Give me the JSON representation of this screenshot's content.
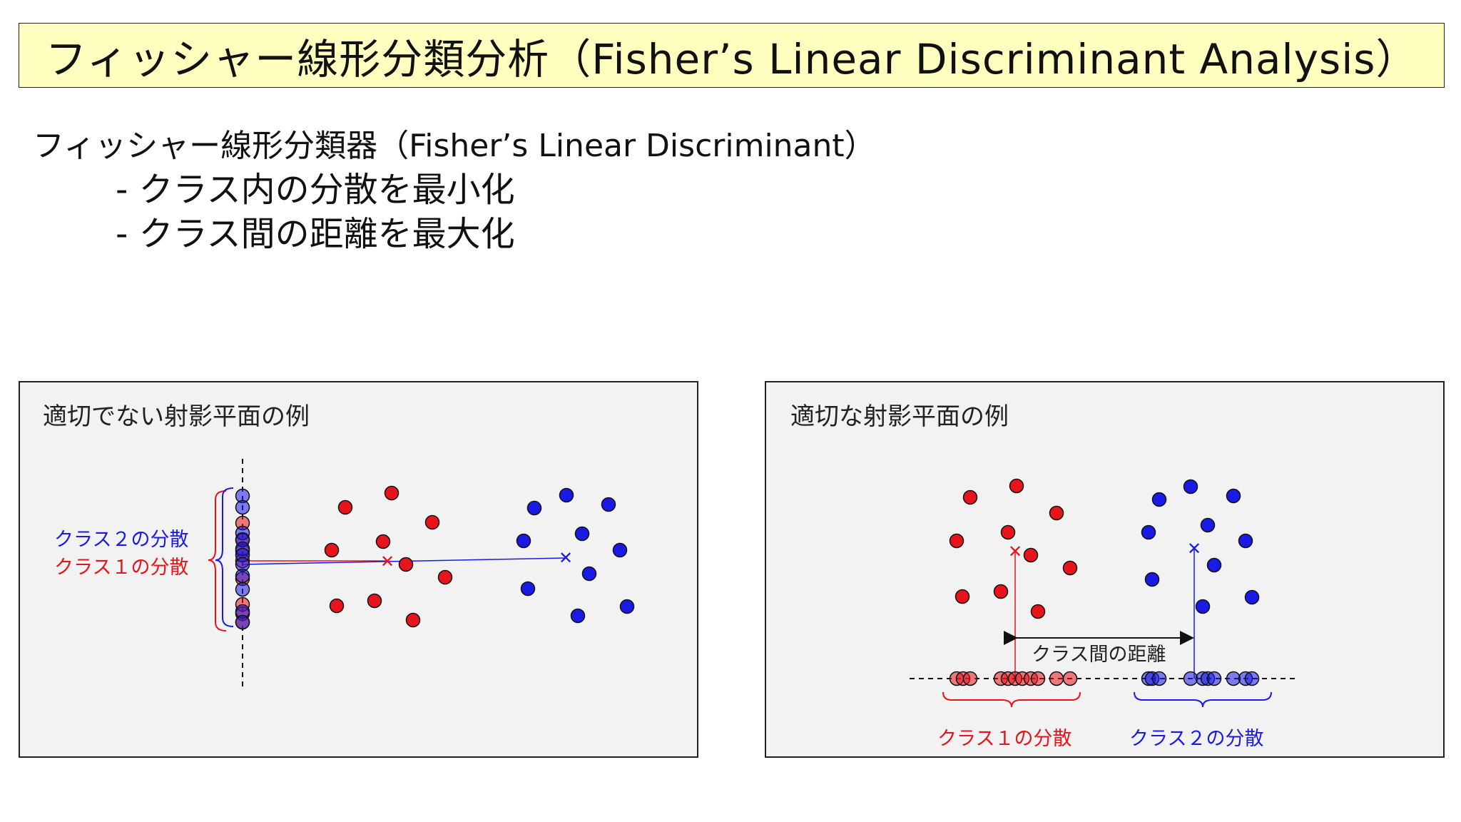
{
  "title": "フィッシャー線形分類分析（Fisher’s Linear Discriminant Analysis）",
  "subtitle": "フィッシャー線形分類器（Fisher’s Linear Discriminant）",
  "bullets": [
    "- クラス内の分散を最小化",
    "- クラス間の距離を最大化"
  ],
  "colors": {
    "class1": "#e8141c",
    "class2": "#1a1ae6",
    "title_bg": "#ffffc0",
    "panel_bg": "#f2f2f2"
  },
  "left_panel": {
    "title": "適切でない射影平面の例",
    "labels": {
      "class2_variance": "クラス２の分散",
      "class1_variance": "クラス１の分散"
    }
  },
  "right_panel": {
    "title": "適切な射影平面の例",
    "labels": {
      "between_distance": "クラス間の距離",
      "class1_variance": "クラス１の分散",
      "class2_variance": "クラス２の分散"
    }
  }
}
